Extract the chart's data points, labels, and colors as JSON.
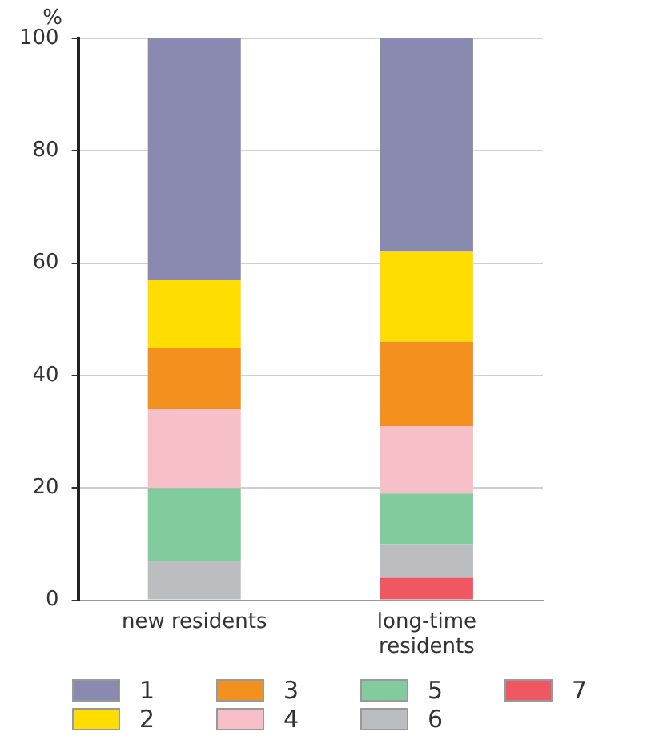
{
  "chart_data": {
    "type": "bar",
    "stacked": true,
    "ylabel": "%",
    "categories": [
      "new residents",
      "long-time residents"
    ],
    "series": [
      {
        "name": "7",
        "color": "#ef5763",
        "values": [
          null,
          4
        ]
      },
      {
        "name": "6",
        "color": "#bcbdc0",
        "values": [
          7,
          6
        ]
      },
      {
        "name": "5",
        "color": "#82cb9c",
        "values": [
          13,
          9
        ]
      },
      {
        "name": "4",
        "color": "#f7bfc7",
        "values": [
          14,
          12
        ]
      },
      {
        "name": "3",
        "color": "#f4901e",
        "values": [
          11,
          15
        ]
      },
      {
        "name": "2",
        "color": "#ffdd00",
        "values": [
          12,
          16
        ]
      },
      {
        "name": "1",
        "color": "#8a89b0",
        "values": [
          43,
          38
        ]
      }
    ],
    "ylim": [
      0,
      100
    ],
    "yticks": [
      0,
      20,
      40,
      60,
      80,
      100
    ],
    "grid": "y",
    "legend": "bottom"
  }
}
